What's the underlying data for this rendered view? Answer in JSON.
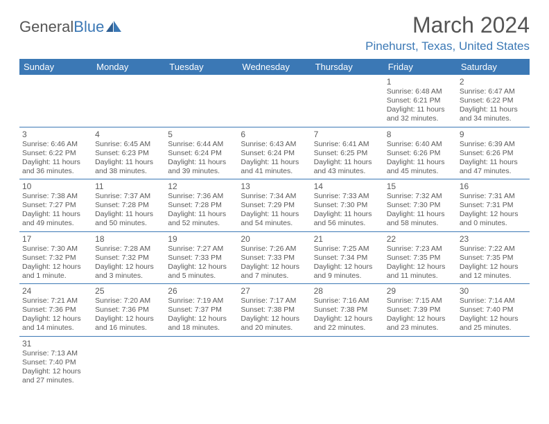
{
  "logo": {
    "text1": "General",
    "text2": "Blue"
  },
  "title": "March 2024",
  "location": "Pinehurst, Texas, United States",
  "weekdays": [
    "Sunday",
    "Monday",
    "Tuesday",
    "Wednesday",
    "Thursday",
    "Friday",
    "Saturday"
  ],
  "colors": {
    "header_bg": "#3b78b5",
    "header_text": "#ffffff",
    "accent": "#3b78b5",
    "body_text": "#5a5a5a",
    "background": "#ffffff"
  },
  "typography": {
    "title_fontsize": 32,
    "location_fontsize": 17,
    "weekday_fontsize": 13,
    "daynum_fontsize": 12,
    "body_fontsize": 10.5
  },
  "weeks": [
    [
      null,
      null,
      null,
      null,
      null,
      {
        "n": "1",
        "sr": "Sunrise: 6:48 AM",
        "ss": "Sunset: 6:21 PM",
        "d1": "Daylight: 11 hours",
        "d2": "and 32 minutes."
      },
      {
        "n": "2",
        "sr": "Sunrise: 6:47 AM",
        "ss": "Sunset: 6:22 PM",
        "d1": "Daylight: 11 hours",
        "d2": "and 34 minutes."
      }
    ],
    [
      {
        "n": "3",
        "sr": "Sunrise: 6:46 AM",
        "ss": "Sunset: 6:22 PM",
        "d1": "Daylight: 11 hours",
        "d2": "and 36 minutes."
      },
      {
        "n": "4",
        "sr": "Sunrise: 6:45 AM",
        "ss": "Sunset: 6:23 PM",
        "d1": "Daylight: 11 hours",
        "d2": "and 38 minutes."
      },
      {
        "n": "5",
        "sr": "Sunrise: 6:44 AM",
        "ss": "Sunset: 6:24 PM",
        "d1": "Daylight: 11 hours",
        "d2": "and 39 minutes."
      },
      {
        "n": "6",
        "sr": "Sunrise: 6:43 AM",
        "ss": "Sunset: 6:24 PM",
        "d1": "Daylight: 11 hours",
        "d2": "and 41 minutes."
      },
      {
        "n": "7",
        "sr": "Sunrise: 6:41 AM",
        "ss": "Sunset: 6:25 PM",
        "d1": "Daylight: 11 hours",
        "d2": "and 43 minutes."
      },
      {
        "n": "8",
        "sr": "Sunrise: 6:40 AM",
        "ss": "Sunset: 6:26 PM",
        "d1": "Daylight: 11 hours",
        "d2": "and 45 minutes."
      },
      {
        "n": "9",
        "sr": "Sunrise: 6:39 AM",
        "ss": "Sunset: 6:26 PM",
        "d1": "Daylight: 11 hours",
        "d2": "and 47 minutes."
      }
    ],
    [
      {
        "n": "10",
        "sr": "Sunrise: 7:38 AM",
        "ss": "Sunset: 7:27 PM",
        "d1": "Daylight: 11 hours",
        "d2": "and 49 minutes."
      },
      {
        "n": "11",
        "sr": "Sunrise: 7:37 AM",
        "ss": "Sunset: 7:28 PM",
        "d1": "Daylight: 11 hours",
        "d2": "and 50 minutes."
      },
      {
        "n": "12",
        "sr": "Sunrise: 7:36 AM",
        "ss": "Sunset: 7:28 PM",
        "d1": "Daylight: 11 hours",
        "d2": "and 52 minutes."
      },
      {
        "n": "13",
        "sr": "Sunrise: 7:34 AM",
        "ss": "Sunset: 7:29 PM",
        "d1": "Daylight: 11 hours",
        "d2": "and 54 minutes."
      },
      {
        "n": "14",
        "sr": "Sunrise: 7:33 AM",
        "ss": "Sunset: 7:30 PM",
        "d1": "Daylight: 11 hours",
        "d2": "and 56 minutes."
      },
      {
        "n": "15",
        "sr": "Sunrise: 7:32 AM",
        "ss": "Sunset: 7:30 PM",
        "d1": "Daylight: 11 hours",
        "d2": "and 58 minutes."
      },
      {
        "n": "16",
        "sr": "Sunrise: 7:31 AM",
        "ss": "Sunset: 7:31 PM",
        "d1": "Daylight: 12 hours",
        "d2": "and 0 minutes."
      }
    ],
    [
      {
        "n": "17",
        "sr": "Sunrise: 7:30 AM",
        "ss": "Sunset: 7:32 PM",
        "d1": "Daylight: 12 hours",
        "d2": "and 1 minute."
      },
      {
        "n": "18",
        "sr": "Sunrise: 7:28 AM",
        "ss": "Sunset: 7:32 PM",
        "d1": "Daylight: 12 hours",
        "d2": "and 3 minutes."
      },
      {
        "n": "19",
        "sr": "Sunrise: 7:27 AM",
        "ss": "Sunset: 7:33 PM",
        "d1": "Daylight: 12 hours",
        "d2": "and 5 minutes."
      },
      {
        "n": "20",
        "sr": "Sunrise: 7:26 AM",
        "ss": "Sunset: 7:33 PM",
        "d1": "Daylight: 12 hours",
        "d2": "and 7 minutes."
      },
      {
        "n": "21",
        "sr": "Sunrise: 7:25 AM",
        "ss": "Sunset: 7:34 PM",
        "d1": "Daylight: 12 hours",
        "d2": "and 9 minutes."
      },
      {
        "n": "22",
        "sr": "Sunrise: 7:23 AM",
        "ss": "Sunset: 7:35 PM",
        "d1": "Daylight: 12 hours",
        "d2": "and 11 minutes."
      },
      {
        "n": "23",
        "sr": "Sunrise: 7:22 AM",
        "ss": "Sunset: 7:35 PM",
        "d1": "Daylight: 12 hours",
        "d2": "and 12 minutes."
      }
    ],
    [
      {
        "n": "24",
        "sr": "Sunrise: 7:21 AM",
        "ss": "Sunset: 7:36 PM",
        "d1": "Daylight: 12 hours",
        "d2": "and 14 minutes."
      },
      {
        "n": "25",
        "sr": "Sunrise: 7:20 AM",
        "ss": "Sunset: 7:36 PM",
        "d1": "Daylight: 12 hours",
        "d2": "and 16 minutes."
      },
      {
        "n": "26",
        "sr": "Sunrise: 7:19 AM",
        "ss": "Sunset: 7:37 PM",
        "d1": "Daylight: 12 hours",
        "d2": "and 18 minutes."
      },
      {
        "n": "27",
        "sr": "Sunrise: 7:17 AM",
        "ss": "Sunset: 7:38 PM",
        "d1": "Daylight: 12 hours",
        "d2": "and 20 minutes."
      },
      {
        "n": "28",
        "sr": "Sunrise: 7:16 AM",
        "ss": "Sunset: 7:38 PM",
        "d1": "Daylight: 12 hours",
        "d2": "and 22 minutes."
      },
      {
        "n": "29",
        "sr": "Sunrise: 7:15 AM",
        "ss": "Sunset: 7:39 PM",
        "d1": "Daylight: 12 hours",
        "d2": "and 23 minutes."
      },
      {
        "n": "30",
        "sr": "Sunrise: 7:14 AM",
        "ss": "Sunset: 7:40 PM",
        "d1": "Daylight: 12 hours",
        "d2": "and 25 minutes."
      }
    ],
    [
      {
        "n": "31",
        "sr": "Sunrise: 7:13 AM",
        "ss": "Sunset: 7:40 PM",
        "d1": "Daylight: 12 hours",
        "d2": "and 27 minutes."
      },
      null,
      null,
      null,
      null,
      null,
      null
    ]
  ]
}
